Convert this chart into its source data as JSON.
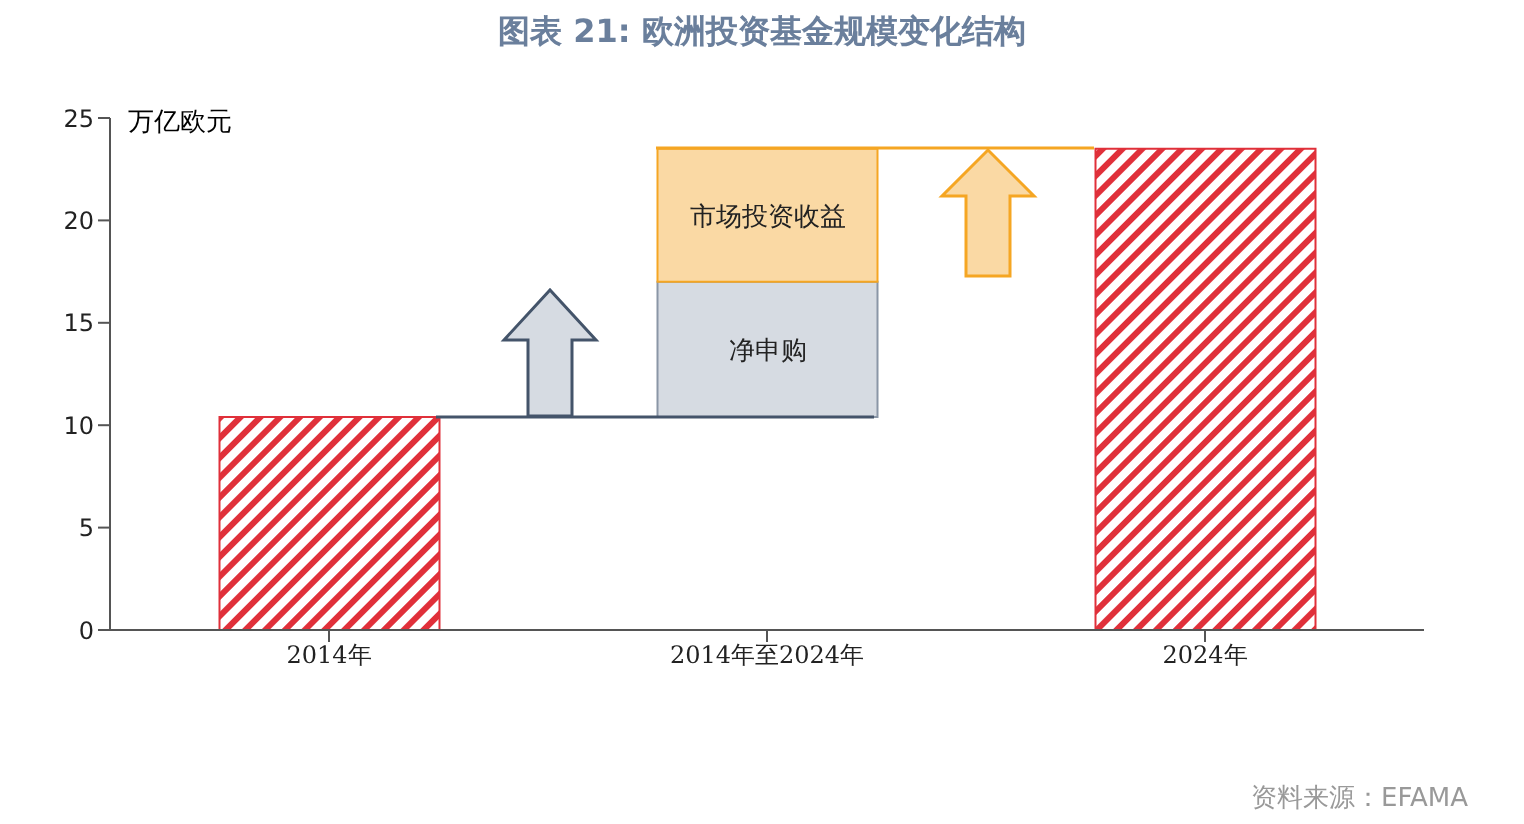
{
  "chart_data": {
    "type": "bar",
    "title": "图表 21: 欧洲投资基金规模变化结构",
    "ylabel": "万亿欧元",
    "categories": [
      "2014年",
      "2014年至2024年",
      "2024年"
    ],
    "series": [
      {
        "color": "#e0303a",
        "values": [
          10.4,
          null,
          23.5
        ],
        "base": [
          0,
          null,
          0
        ]
      },
      {
        "name": "净申购",
        "color": "#d6dbe2",
        "values": [
          null,
          6.6,
          null
        ],
        "base": [
          null,
          10.4,
          null
        ]
      },
      {
        "name": "市场投资收益",
        "color": "#fad9a4",
        "values": [
          null,
          6.5,
          null
        ],
        "base": [
          null,
          17.0,
          null
        ]
      }
    ],
    "ylim": [
      0,
      25
    ],
    "yticks": [
      0,
      5,
      10,
      15,
      20,
      25
    ],
    "annotations": [
      "资料来源：EFAMA"
    ]
  }
}
